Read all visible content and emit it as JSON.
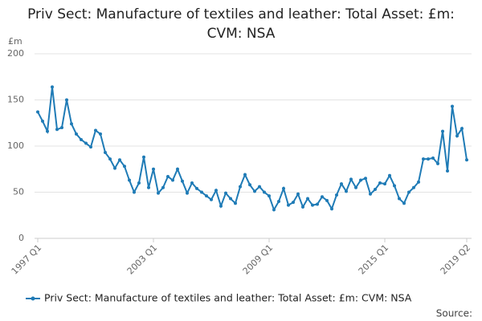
{
  "chart_data": {
    "type": "line",
    "title": "Priv Sect: Manufacture of textiles and leather: Total Asset: £m: CVM: NSA",
    "y_unit": "£m",
    "source_label": "Source:",
    "categories": [
      "1997 Q1",
      null,
      null,
      null,
      null,
      null,
      null,
      null,
      null,
      null,
      null,
      null,
      null,
      null,
      null,
      null,
      null,
      null,
      null,
      null,
      null,
      null,
      null,
      null,
      "2003 Q1",
      null,
      null,
      null,
      null,
      null,
      null,
      null,
      null,
      null,
      null,
      null,
      null,
      null,
      null,
      null,
      null,
      null,
      null,
      null,
      null,
      null,
      null,
      null,
      "2009 Q1",
      null,
      null,
      null,
      null,
      null,
      null,
      null,
      null,
      null,
      null,
      null,
      null,
      null,
      null,
      null,
      null,
      null,
      null,
      null,
      null,
      null,
      null,
      null,
      "2015 Q1",
      null,
      null,
      null,
      null,
      null,
      null,
      null,
      null,
      null,
      null,
      null,
      null,
      null,
      null,
      null,
      null,
      "2019 Q2"
    ],
    "series": [
      {
        "name": "Priv Sect: Manufacture of textiles and leather: Total Asset: £m: CVM: NSA",
        "color": "#1f7bb6",
        "values": [
          137,
          127,
          116,
          164,
          118,
          120,
          150,
          124,
          113,
          107,
          103,
          99,
          117,
          113,
          93,
          86,
          76,
          85,
          78,
          63,
          50,
          60,
          88,
          55,
          75,
          49,
          55,
          67,
          63,
          75,
          62,
          49,
          60,
          54,
          50,
          46,
          42,
          52,
          35,
          49,
          43,
          38,
          56,
          69,
          58,
          51,
          56,
          50,
          46,
          31,
          40,
          54,
          36,
          39,
          48,
          34,
          43,
          36,
          37,
          45,
          41,
          32,
          47,
          59,
          51,
          64,
          55,
          63,
          65,
          48,
          53,
          60,
          59,
          68,
          57,
          43,
          38,
          50,
          55,
          61,
          86,
          86,
          87,
          81,
          116,
          73,
          143,
          111,
          119,
          85
        ]
      }
    ],
    "ylim": [
      0,
      200
    ],
    "yticks": [
      0,
      50,
      100,
      150,
      200
    ],
    "grid": true,
    "legend": "bottom"
  }
}
